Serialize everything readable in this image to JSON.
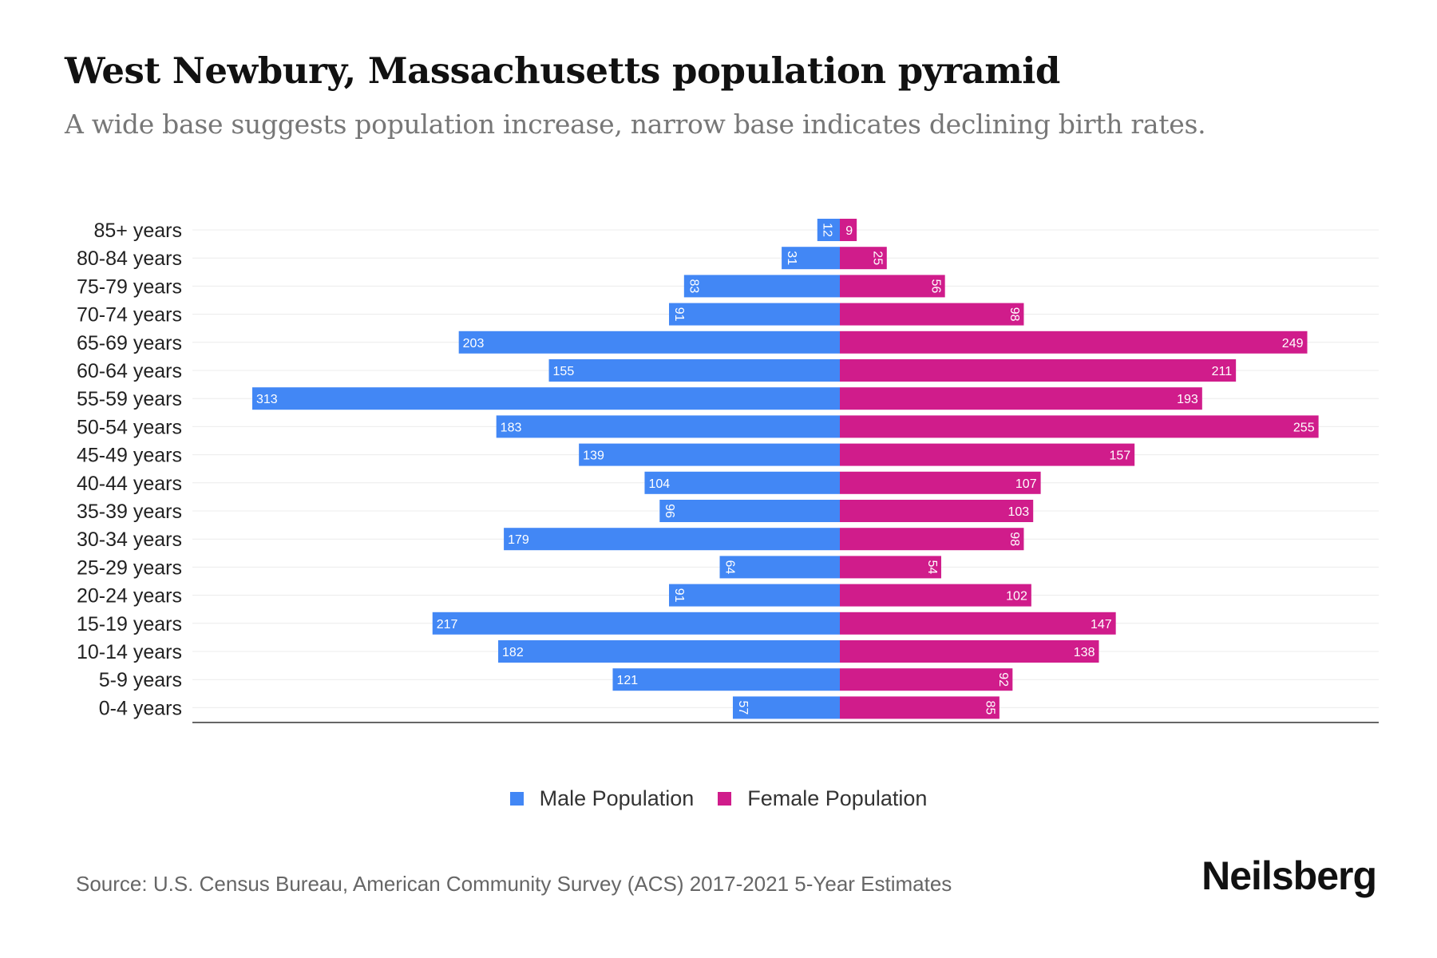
{
  "header": {
    "title": "West Newbury, Massachusetts population pyramid",
    "subtitle": "A wide base suggests population increase, narrow base indicates declining birth rates."
  },
  "chart_data": {
    "type": "bar",
    "orientation": "horizontal-pyramid",
    "categories": [
      "85+ years",
      "80-84 years",
      "75-79 years",
      "70-74 years",
      "65-69 years",
      "60-64 years",
      "55-59 years",
      "50-54 years",
      "45-49 years",
      "40-44 years",
      "35-39 years",
      "30-34 years",
      "25-29 years",
      "20-24 years",
      "15-19 years",
      "10-14 years",
      "5-9 years",
      "0-4 years"
    ],
    "series": [
      {
        "name": "Male Population",
        "color": "#4287f5",
        "values": [
          12,
          31,
          83,
          91,
          203,
          155,
          313,
          183,
          139,
          104,
          96,
          179,
          64,
          91,
          217,
          182,
          121,
          57
        ]
      },
      {
        "name": "Female Population",
        "color": "#d01c8b",
        "values": [
          9,
          25,
          56,
          98,
          249,
          211,
          193,
          255,
          157,
          107,
          103,
          98,
          54,
          102,
          147,
          138,
          92,
          85
        ]
      }
    ],
    "xlim": [
      -313,
      313
    ],
    "grid": true,
    "legend_position": "bottom"
  },
  "footer": {
    "source": "Source: U.S. Census Bureau, American Community Survey (ACS) 2017-2021 5-Year Estimates",
    "brand": "Neilsberg"
  }
}
